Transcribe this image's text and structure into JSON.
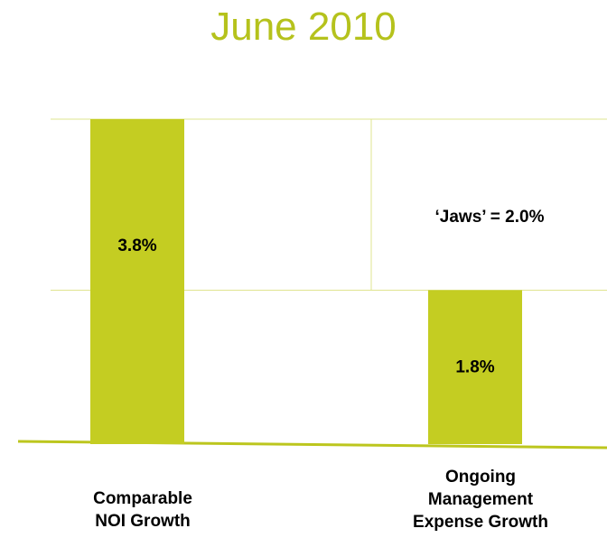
{
  "chart_data": {
    "type": "bar",
    "title": "June 2010",
    "categories": [
      "Comparable NOI Growth",
      "Ongoing Management Expense Growth"
    ],
    "category_lines": [
      [
        "Comparable",
        "NOI Growth"
      ],
      [
        "Ongoing",
        "Management",
        "Expense Growth"
      ]
    ],
    "values": [
      3.8,
      1.8
    ],
    "value_labels": [
      "3.8%",
      "1.8%"
    ],
    "unit": "%",
    "ylim": [
      0,
      3.8
    ],
    "grid": true,
    "annotation": {
      "text": "‘Jaws’ = 2.0%",
      "value": 2.0,
      "from": 1.8,
      "to": 3.8
    }
  },
  "colors": {
    "bar": "#c4cd22",
    "title": "#b5c21c",
    "gridline": "#dfe48f",
    "axis": "#bcc61e",
    "text": "#000000"
  }
}
